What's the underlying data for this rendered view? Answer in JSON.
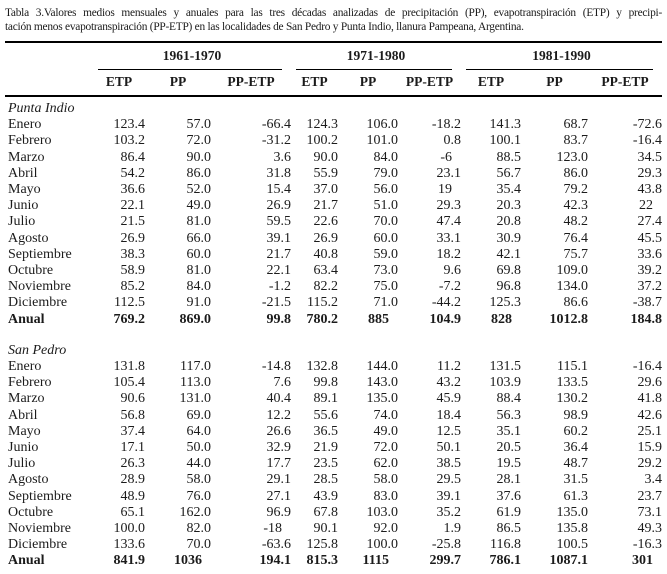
{
  "caption": {
    "line1": "Tabla 3.Valores medios mensuales y anuales para las tres décadas analizadas de precipitación (PP), evapotranspiración (ETP) y precipi-",
    "line2": "tación menos evapotranspiración (PP-ETP) en las localidades de San Pedro y Punta Indio, llanura Pampeana, Argentina."
  },
  "table": {
    "decades": [
      "1961-1970",
      "1971-1980",
      "1981-1990"
    ],
    "col_headers": [
      "ETP",
      "PP",
      "PP-ETP"
    ],
    "sections": [
      {
        "name": "Punta Indio",
        "rows": [
          {
            "label": "Enero",
            "values": [
              "123.4",
              "57.0",
              "-66.4",
              "124.3",
              "106.0",
              "-18.2",
              "141.3",
              "68.7",
              "-72.6"
            ]
          },
          {
            "label": "Febrero",
            "values": [
              "103.2",
              "72.0",
              "-31.2",
              "100.2",
              "101.0",
              "0.8",
              "100.1",
              "83.7",
              "-16.4"
            ]
          },
          {
            "label": "Marzo",
            "values": [
              "86.4",
              "90.0",
              "3.6",
              "90.0",
              "84.0",
              "-6",
              "88.5",
              "123.0",
              "34.5"
            ]
          },
          {
            "label": "Abril",
            "values": [
              "54.2",
              "86.0",
              "31.8",
              "55.9",
              "79.0",
              "23.1",
              "56.7",
              "86.0",
              "29.3"
            ]
          },
          {
            "label": "Mayo",
            "values": [
              "36.6",
              "52.0",
              "15.4",
              "37.0",
              "56.0",
              "19",
              "35.4",
              "79.2",
              "43.8"
            ]
          },
          {
            "label": "Junio",
            "values": [
              "22.1",
              "49.0",
              "26.9",
              "21.7",
              "51.0",
              "29.3",
              "20.3",
              "42.3",
              "22"
            ]
          },
          {
            "label": "Julio",
            "values": [
              "21.5",
              "81.0",
              "59.5",
              "22.6",
              "70.0",
              "47.4",
              "20.8",
              "48.2",
              "27.4"
            ]
          },
          {
            "label": "Agosto",
            "values": [
              "26.9",
              "66.0",
              "39.1",
              "26.9",
              "60.0",
              "33.1",
              "30.9",
              "76.4",
              "45.5"
            ]
          },
          {
            "label": "Septiembre",
            "values": [
              "38.3",
              "60.0",
              "21.7",
              "40.8",
              "59.0",
              "18.2",
              "42.1",
              "75.7",
              "33.6"
            ]
          },
          {
            "label": "Octubre",
            "values": [
              "58.9",
              "81.0",
              "22.1",
              "63.4",
              "73.0",
              "9.6",
              "69.8",
              "109.0",
              "39.2"
            ]
          },
          {
            "label": "Noviembre",
            "values": [
              "85.2",
              "84.0",
              "-1.2",
              "82.2",
              "75.0",
              "-7.2",
              "96.8",
              "134.0",
              "37.2"
            ]
          },
          {
            "label": "Diciembre",
            "values": [
              "112.5",
              "91.0",
              "-21.5",
              "115.2",
              "71.0",
              "-44.2",
              "125.3",
              "86.6",
              "-38.7"
            ]
          },
          {
            "label": "Anual",
            "is_total": true,
            "values": [
              "769.2",
              "869.0",
              "99.8",
              "780.2",
              "885",
              "104.9",
              "828",
              "1012.8",
              "184.8"
            ]
          }
        ]
      },
      {
        "name": "San Pedro",
        "rows": [
          {
            "label": "Enero",
            "values": [
              "131.8",
              "117.0",
              "-14.8",
              "132.8",
              "144.0",
              "11.2",
              "131.5",
              "115.1",
              "-16.4"
            ]
          },
          {
            "label": "Febrero",
            "values": [
              "105.4",
              "113.0",
              "7.6",
              "99.8",
              "143.0",
              "43.2",
              "103.9",
              "133.5",
              "29.6"
            ]
          },
          {
            "label": "Marzo",
            "values": [
              "90.6",
              "131.0",
              "40.4",
              "89.1",
              "135.0",
              "45.9",
              "88.4",
              "130.2",
              "41.8"
            ]
          },
          {
            "label": "Abril",
            "values": [
              "56.8",
              "69.0",
              "12.2",
              "55.6",
              "74.0",
              "18.4",
              "56.3",
              "98.9",
              "42.6"
            ]
          },
          {
            "label": "Mayo",
            "values": [
              "37.4",
              "64.0",
              "26.6",
              "36.5",
              "49.0",
              "12.5",
              "35.1",
              "60.2",
              "25.1"
            ]
          },
          {
            "label": "Junio",
            "values": [
              "17.1",
              "50.0",
              "32.9",
              "21.9",
              "72.0",
              "50.1",
              "20.5",
              "36.4",
              "15.9"
            ]
          },
          {
            "label": "Julio",
            "values": [
              "26.3",
              "44.0",
              "17.7",
              "23.5",
              "62.0",
              "38.5",
              "19.5",
              "48.7",
              "29.2"
            ]
          },
          {
            "label": "Agosto",
            "values": [
              "28.9",
              "58.0",
              "29.1",
              "28.5",
              "58.0",
              "29.5",
              "28.1",
              "31.5",
              "3.4"
            ]
          },
          {
            "label": "Septiembre",
            "values": [
              "48.9",
              "76.0",
              "27.1",
              "43.9",
              "83.0",
              "39.1",
              "37.6",
              "61.3",
              "23.7"
            ]
          },
          {
            "label": "Octubre",
            "values": [
              "65.1",
              "162.0",
              "96.9",
              "67.8",
              "103.0",
              "35.2",
              "61.9",
              "135.0",
              "73.1"
            ]
          },
          {
            "label": "Noviembre",
            "values": [
              "100.0",
              "82.0",
              "-18",
              "90.1",
              "92.0",
              "1.9",
              "86.5",
              "135.8",
              "49.3"
            ]
          },
          {
            "label": "Diciembre",
            "values": [
              "133.6",
              "70.0",
              "-63.6",
              "125.8",
              "100.0",
              "-25.8",
              "116.8",
              "100.5",
              "-16.3"
            ]
          },
          {
            "label": "Anual",
            "is_total": true,
            "values": [
              "841.9",
              "1036",
              "194.1",
              "815.3",
              "1115",
              "299.7",
              "786.1",
              "1087.1",
              "301"
            ]
          }
        ]
      }
    ]
  },
  "chart_data": {
    "type": "table",
    "title": "Tabla 3. Valores medios mensuales y anuales para las tres décadas analizadas de PP, ETP y PP-ETP en San Pedro y Punta Indio, llanura Pampeana, Argentina",
    "column_groups": [
      "1961-1970",
      "1971-1980",
      "1981-1990"
    ],
    "columns_per_group": [
      "ETP",
      "PP",
      "PP-ETP"
    ]
  }
}
